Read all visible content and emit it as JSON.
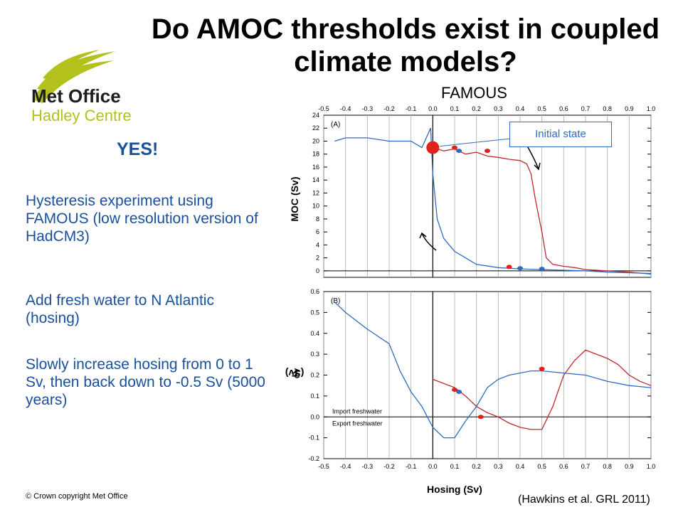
{
  "title": "Do AMOC thresholds exist in coupled climate models?",
  "logo": {
    "line1": "Met Office",
    "line2": "Hadley Centre",
    "color_green": "#b3c11c",
    "color_dark": "#1d1d1b"
  },
  "left_panel": {
    "yes": "YES!",
    "paragraphs": [
      "Hysteresis experiment using FAMOUS (low resolution version of HadCM3)",
      "Add fresh water to N Atlantic (hosing)",
      "Slowly increase hosing from 0 to 1 Sv, then back down to -0.5 Sv (5000 years)"
    ],
    "text_color": "#1a4f9c"
  },
  "chart_heading": "FAMOUS",
  "callout": "Initial state",
  "footer": {
    "copyright": "© Crown copyright   Met Office",
    "citation": "(Hawkins et al. GRL 2011)"
  },
  "chart_data": [
    {
      "type": "line",
      "panel_label": "(A)",
      "ylabel": "MOC (Sv)",
      "xlim": [
        -0.5,
        1.0
      ],
      "ylim": [
        -1,
        24
      ],
      "xticks": [
        "-0.5",
        "-0.4",
        "-0.3",
        "-0.2",
        "-0.1",
        "0.0",
        "0.1",
        "0.2",
        "0.3",
        "0.4",
        "0.5",
        "0.6",
        "0.7",
        "0.8",
        "0.9",
        "1.0"
      ],
      "yticks": [
        "0",
        "2",
        "4",
        "6",
        "8",
        "10",
        "12",
        "14",
        "16",
        "18",
        "20",
        "22",
        "24"
      ],
      "series": [
        {
          "color": "#c0282c",
          "x": [
            0.0,
            0.05,
            0.1,
            0.15,
            0.2,
            0.25,
            0.3,
            0.35,
            0.4,
            0.43,
            0.45,
            0.47,
            0.5,
            0.52,
            0.55,
            0.6,
            0.65,
            0.7,
            0.8,
            0.9,
            1.0
          ],
          "y": [
            19,
            18.5,
            18.8,
            18,
            18.3,
            17.7,
            17.5,
            17.2,
            17,
            16.5,
            15,
            11,
            6,
            2,
            1,
            0.7,
            0.5,
            0.2,
            0,
            -0.2,
            -0.5
          ]
        },
        {
          "color": "#2e6bc1",
          "x": [
            1.0,
            0.9,
            0.8,
            0.7,
            0.6,
            0.5,
            0.4,
            0.3,
            0.2,
            0.15,
            0.1,
            0.05,
            0.02,
            0.0,
            -0.01,
            -0.05,
            -0.1,
            -0.2,
            -0.3,
            -0.4,
            -0.45
          ],
          "y": [
            -0.4,
            -0.3,
            -0.2,
            0,
            0.1,
            0.2,
            0.3,
            0.5,
            1,
            2,
            3,
            5,
            8,
            15,
            22,
            19,
            20,
            20,
            20.5,
            20.5,
            20
          ]
        }
      ],
      "markers": [
        {
          "x": 0.0,
          "y": 19,
          "color": "#e0201b"
        },
        {
          "x": 0.1,
          "y": 19,
          "color": "#e0201b"
        },
        {
          "x": 0.12,
          "y": 18.5,
          "color": "#2e6bc1"
        },
        {
          "x": 0.25,
          "y": 18.5,
          "color": "#e0201b"
        },
        {
          "x": 0.35,
          "y": 0.6,
          "color": "#e0201b"
        },
        {
          "x": 0.4,
          "y": 0.4,
          "color": "#2e6bc1"
        },
        {
          "x": 0.5,
          "y": 0.3,
          "color": "#2e6bc1"
        }
      ]
    },
    {
      "type": "line",
      "panel_label": "(B)",
      "ylabel": "F",
      "ylabel_sub": "OV",
      "ylabel_unit": " (Sv)",
      "xlabel": "Hosing (Sv)",
      "xlim": [
        -0.5,
        1.0
      ],
      "ylim": [
        -0.2,
        0.6
      ],
      "xticks": [
        "-0.5",
        "-0.4",
        "-0.3",
        "-0.2",
        "-0.1",
        "0.0",
        "0.1",
        "0.2",
        "0.3",
        "0.4",
        "0.5",
        "0.6",
        "0.7",
        "0.8",
        "0.9",
        "1.0"
      ],
      "yticks": [
        "-0.2",
        "-0.1",
        "0.0",
        "0.1",
        "0.2",
        "0.3",
        "0.4",
        "0.5",
        "0.6"
      ],
      "annotations": [
        "Import freshwater",
        "Export freshwater"
      ],
      "series": [
        {
          "color": "#c0282c",
          "x": [
            0.0,
            0.1,
            0.15,
            0.2,
            0.25,
            0.3,
            0.35,
            0.4,
            0.45,
            0.5,
            0.55,
            0.6,
            0.65,
            0.7,
            0.75,
            0.8,
            0.85,
            0.9,
            0.95,
            1.0
          ],
          "y": [
            0.18,
            0.14,
            0.1,
            0.05,
            0.02,
            0.0,
            -0.03,
            -0.05,
            -0.06,
            -0.06,
            0.05,
            0.2,
            0.27,
            0.32,
            0.3,
            0.28,
            0.25,
            0.2,
            0.17,
            0.15
          ]
        },
        {
          "color": "#2e6bc1",
          "x": [
            1.0,
            0.9,
            0.8,
            0.7,
            0.6,
            0.5,
            0.45,
            0.4,
            0.35,
            0.3,
            0.25,
            0.2,
            0.15,
            0.1,
            0.05,
            0.0,
            -0.05,
            -0.1,
            -0.15,
            -0.2,
            -0.3,
            -0.4,
            -0.45
          ],
          "y": [
            0.14,
            0.15,
            0.17,
            0.2,
            0.21,
            0.22,
            0.22,
            0.21,
            0.2,
            0.18,
            0.14,
            0.05,
            -0.02,
            -0.1,
            -0.1,
            -0.05,
            0.05,
            0.12,
            0.22,
            0.35,
            0.42,
            0.5,
            0.55
          ]
        }
      ],
      "markers": [
        {
          "x": 0.1,
          "y": 0.13,
          "color": "#e0201b"
        },
        {
          "x": 0.12,
          "y": 0.12,
          "color": "#2e6bc1"
        },
        {
          "x": 0.22,
          "y": 0.0,
          "color": "#e0201b"
        },
        {
          "x": 0.5,
          "y": 0.23,
          "color": "#e0201b"
        }
      ]
    }
  ]
}
